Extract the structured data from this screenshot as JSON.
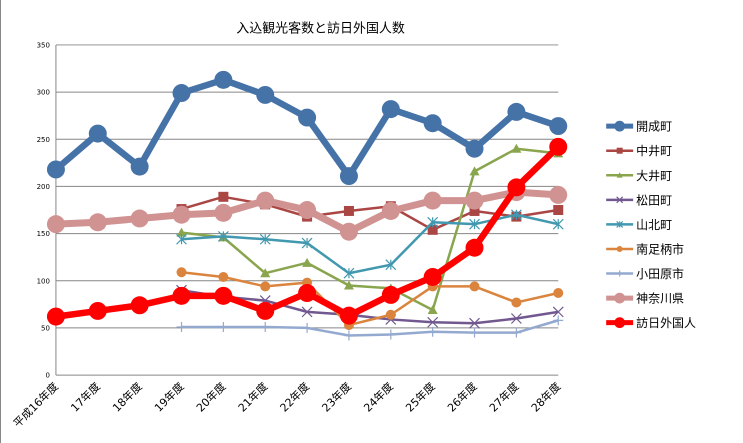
{
  "chart_data": {
    "type": "line",
    "title": "入込観光客数と訪日外国人数",
    "xlabel": "",
    "ylabel": "",
    "ylim": [
      0,
      350
    ],
    "yticks": [
      0,
      50,
      100,
      150,
      200,
      250,
      300,
      350
    ],
    "grid": true,
    "legend_position": "right",
    "categories": [
      "平成16年度",
      "17年度",
      "18年度",
      "19年度",
      "20年度",
      "21年度",
      "22年度",
      "23年度",
      "24年度",
      "25年度",
      "26年度",
      "27年度",
      "28年度"
    ],
    "series": [
      {
        "name": "開成町",
        "color": "#4572a7",
        "marker": "circle",
        "values": [
          218,
          256,
          221,
          299,
          313,
          297,
          273,
          211,
          282,
          267,
          240,
          279,
          264
        ]
      },
      {
        "name": "中井町",
        "color": "#aa4643",
        "marker": "square",
        "values": [
          null,
          null,
          null,
          176,
          189,
          181,
          168,
          174,
          179,
          154,
          174,
          168,
          175
        ]
      },
      {
        "name": "大井町",
        "color": "#89a54e",
        "marker": "triangle",
        "values": [
          null,
          null,
          null,
          151,
          146,
          108,
          119,
          95,
          92,
          69,
          216,
          240,
          235
        ]
      },
      {
        "name": "松田町",
        "color": "#71588f",
        "marker": "x",
        "values": [
          null,
          null,
          null,
          90,
          83,
          79,
          67,
          64,
          59,
          56,
          55,
          60,
          67
        ]
      },
      {
        "name": "山北町",
        "color": "#4198af",
        "marker": "star",
        "values": [
          null,
          null,
          null,
          144,
          147,
          144,
          140,
          108,
          117,
          162,
          160,
          170,
          160
        ]
      },
      {
        "name": "南足柄市",
        "color": "#db843d",
        "marker": "circle-small",
        "values": [
          null,
          null,
          null,
          109,
          104,
          94,
          98,
          53,
          64,
          94,
          94,
          77,
          87
        ]
      },
      {
        "name": "小田原市",
        "color": "#93a9cf",
        "marker": "plus",
        "values": [
          null,
          null,
          null,
          51,
          51,
          51,
          50,
          42,
          43,
          46,
          45,
          45,
          58
        ]
      },
      {
        "name": "神奈川県",
        "color": "#d19392",
        "marker": "circle",
        "values": [
          160,
          162,
          166,
          170,
          172,
          185,
          175,
          152,
          174,
          185,
          185,
          194,
          191
        ]
      },
      {
        "name": "訪日外国人",
        "color": "#ff0000",
        "marker": "circle",
        "values": [
          62,
          68,
          74,
          84,
          84,
          68,
          87,
          63,
          85,
          104,
          135,
          199,
          242
        ]
      }
    ]
  }
}
